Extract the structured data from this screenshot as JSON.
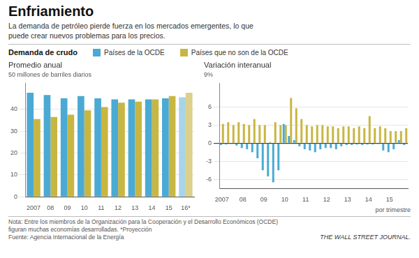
{
  "title": "Enfriamiento",
  "subtitle": "La demanda de petróleo pierde fuerza en los mercados emergentes, lo que\npuede crear nuevos problemas para los precios.",
  "annotations": [
    "Demanda de crudo",
    "Nota: Entre los miembros de la Organización para la Cooperación y el Desarrollo Económicos (OCDE)",
    "figuran muchas economías desarrolladas.   *Proyección",
    "Fuente: Agencia Internacional de la Energía",
    "THE WALL STREET JOURNAL."
  ],
  "chart_data": [
    {
      "type": "bar",
      "title": "Promedio anual",
      "ylabel": "50 millones de barriles diarios",
      "categories": [
        "2007",
        "08",
        "09",
        "10",
        "11",
        "12",
        "13",
        "14",
        "15",
        "16*"
      ],
      "series": [
        {
          "name": "Países de la OCDE",
          "color": "#4BAAD3",
          "colors": [
            "#4BAAD3",
            "#4BAAD3",
            "#4BAAD3",
            "#4BAAD3",
            "#4BAAD3",
            "#4BAAD3",
            "#4BAAD3",
            "#4BAAD3",
            "#4BAAD3",
            "#A8D4E8"
          ],
          "values": [
            47.5,
            46.5,
            45.0,
            46.0,
            45.0,
            44.5,
            44.5,
            44.5,
            45.0,
            45.5
          ]
        },
        {
          "name": "Países que no son de la OCDE",
          "color": "#C8B642",
          "colors": [
            "#C8B642",
            "#C8B642",
            "#C8B642",
            "#C8B642",
            "#C8B642",
            "#C8B642",
            "#C8B642",
            "#C8B642",
            "#C8B642",
            "#DDD08A"
          ],
          "values": [
            35.5,
            36.5,
            37.5,
            39.5,
            41.0,
            43.0,
            43.5,
            44.5,
            46.0,
            47.5
          ]
        }
      ],
      "ylim": [
        0,
        52
      ],
      "yticks": [
        0,
        10,
        20,
        30,
        40
      ],
      "grid": true,
      "legend": "top"
    },
    {
      "type": "bar",
      "title": "Variación interanual",
      "ylabel": "9%",
      "annotations": [
        "por trimestre"
      ],
      "categories": [
        "2007",
        null,
        null,
        null,
        "08",
        null,
        null,
        null,
        "09",
        null,
        null,
        null,
        "10",
        null,
        null,
        null,
        "11",
        null,
        null,
        null,
        "12",
        null,
        null,
        null,
        "13",
        null,
        null,
        null,
        "14",
        null,
        null,
        null,
        "15",
        null,
        null,
        null
      ],
      "series": [
        {
          "name": "Países de la OCDE",
          "color": "#4BAAD3",
          "values": [
            -0.3,
            -0.2,
            -0.1,
            -0.4,
            -0.8,
            -1.0,
            -1.5,
            -2.5,
            -4.5,
            -5.5,
            -6.5,
            -4.5,
            3.2,
            1.2,
            0.5,
            -0.5,
            -1.0,
            -1.2,
            -1.5,
            -1.0,
            -0.8,
            -0.8,
            -1.0,
            -0.5,
            -0.3,
            -0.3,
            -0.2,
            -0.3,
            -0.2,
            -0.2,
            -0.1,
            -1.2,
            -1.5,
            -1.0,
            0.5,
            -0.3
          ]
        },
        {
          "name": "Países que no son de la OCDE",
          "color": "#C8B642",
          "values": [
            3.2,
            3.5,
            3.0,
            3.5,
            3.2,
            3.0,
            4.0,
            3.0,
            3.0,
            0.2,
            3.5,
            3.0,
            3.0,
            7.5,
            5.8,
            4.0,
            3.0,
            2.8,
            3.0,
            3.0,
            2.8,
            2.8,
            2.5,
            2.8,
            2.8,
            2.5,
            2.8,
            2.5,
            4.5,
            2.5,
            2.8,
            2.5,
            2.0,
            2.0,
            2.0,
            2.5
          ]
        }
      ],
      "ylim": [
        -7.5,
        10.0
      ],
      "yticks": [
        -6,
        -3,
        0,
        3,
        6
      ],
      "grid": true
    }
  ]
}
